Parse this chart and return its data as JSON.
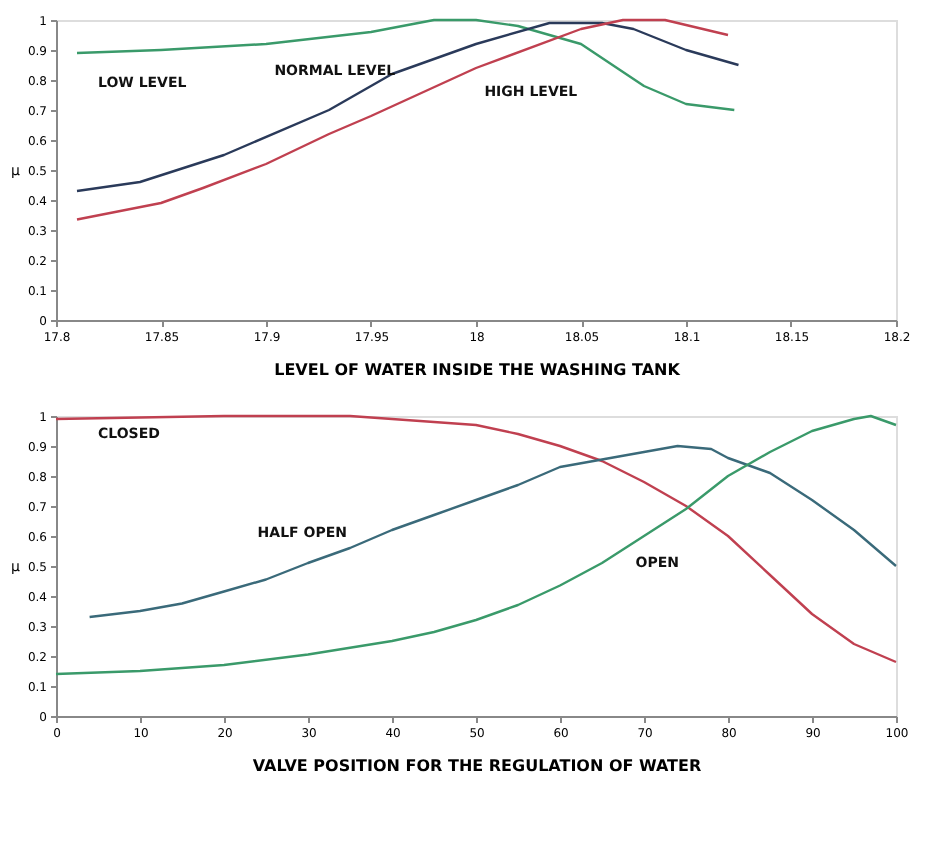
{
  "chart_data": [
    {
      "type": "line",
      "xlabel": "LEVEL OF WATER INSIDE THE WASHING TANK",
      "ylabel": "μ",
      "xlim": [
        17.8,
        18.2
      ],
      "xticks": [
        17.8,
        17.85,
        17.9,
        17.95,
        18,
        18.05,
        18.1,
        18.15,
        18.2
      ],
      "ylim": [
        0,
        1
      ],
      "yticks": [
        0,
        0.1,
        0.2,
        0.3,
        0.4,
        0.5,
        0.6,
        0.7,
        0.8,
        0.9,
        1
      ],
      "grid": false,
      "series": [
        {
          "color": "#3a9a6a",
          "x": [
            17.81,
            17.85,
            17.9,
            17.95,
            17.98,
            18.0,
            18.02,
            18.05,
            18.08,
            18.1,
            18.123
          ],
          "values": [
            0.89,
            0.9,
            0.92,
            0.96,
            1.0,
            1.0,
            0.98,
            0.92,
            0.78,
            0.72,
            0.7
          ]
        },
        {
          "color": "#2a3a5a",
          "x": [
            17.81,
            17.84,
            17.88,
            17.93,
            17.96,
            18.0,
            18.035,
            18.06,
            18.075,
            18.1,
            18.125
          ],
          "values": [
            0.43,
            0.46,
            0.55,
            0.7,
            0.82,
            0.92,
            0.99,
            0.99,
            0.97,
            0.9,
            0.85
          ]
        },
        {
          "color": "#c04050",
          "x": [
            17.81,
            17.85,
            17.87,
            17.9,
            17.93,
            17.95,
            18.0,
            18.05,
            18.07,
            18.09,
            18.12
          ],
          "values": [
            0.335,
            0.39,
            0.44,
            0.52,
            0.62,
            0.68,
            0.84,
            0.97,
            1.0,
            1.0,
            0.95
          ]
        }
      ],
      "annotations": [
        "LOW LEVEL",
        "NORMAL LEVEL",
        "HIGH LEVEL"
      ]
    },
    {
      "type": "line",
      "xlabel": "VALVE POSITION FOR THE REGULATION OF WATER",
      "ylabel": "μ",
      "xlim": [
        0,
        100
      ],
      "xticks": [
        0,
        10,
        20,
        30,
        40,
        50,
        60,
        70,
        80,
        90,
        100
      ],
      "ylim": [
        0,
        1
      ],
      "yticks": [
        0,
        0.1,
        0.2,
        0.3,
        0.4,
        0.5,
        0.6,
        0.7,
        0.8,
        0.9,
        1
      ],
      "grid": false,
      "series": [
        {
          "color": "#c04050",
          "x": [
            0,
            20,
            35,
            40,
            50,
            55,
            60,
            65,
            70,
            75,
            80,
            85,
            90,
            95,
            100
          ],
          "values": [
            0.99,
            1.0,
            1.0,
            0.99,
            0.97,
            0.94,
            0.9,
            0.85,
            0.78,
            0.7,
            0.6,
            0.47,
            0.34,
            0.24,
            0.18
          ]
        },
        {
          "color": "#3a6a7a",
          "x": [
            4,
            10,
            15,
            20,
            25,
            30,
            35,
            40,
            45,
            50,
            55,
            60,
            65,
            70,
            74,
            78,
            80,
            85,
            90,
            95,
            100
          ],
          "values": [
            0.33,
            0.35,
            0.375,
            0.415,
            0.455,
            0.51,
            0.56,
            0.62,
            0.67,
            0.72,
            0.77,
            0.83,
            0.855,
            0.88,
            0.9,
            0.89,
            0.86,
            0.81,
            0.72,
            0.62,
            0.5
          ]
        },
        {
          "color": "#3a9a6a",
          "x": [
            0,
            10,
            20,
            30,
            40,
            45,
            50,
            55,
            60,
            65,
            70,
            75,
            80,
            85,
            90,
            95,
            97,
            100
          ],
          "values": [
            0.14,
            0.15,
            0.17,
            0.205,
            0.25,
            0.28,
            0.32,
            0.37,
            0.435,
            0.51,
            0.6,
            0.69,
            0.8,
            0.88,
            0.95,
            0.99,
            1.0,
            0.97
          ]
        }
      ],
      "annotations": [
        "CLOSED",
        "HALF OPEN",
        "OPEN"
      ]
    }
  ]
}
